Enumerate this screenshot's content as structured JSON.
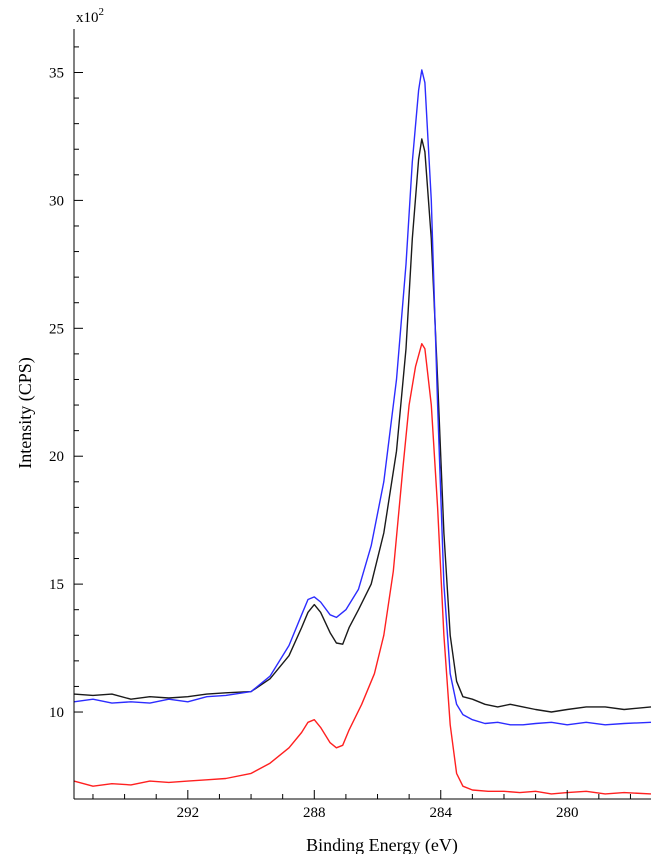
{
  "chart_data": {
    "type": "line",
    "multiplier": {
      "base": "x10",
      "exponent": "2"
    },
    "xlabel": "Binding Energy (eV)",
    "ylabel": "Intensity (CPS)",
    "x_reversed": true,
    "xlim": [
      295.6,
      277.35
    ],
    "ylim": [
      6.6,
      36.7
    ],
    "x_ticks": [
      292,
      288,
      284,
      280
    ],
    "x_minor_ticks": [
      295,
      294,
      293,
      291,
      290,
      289,
      287,
      286,
      285,
      283,
      282,
      281,
      279,
      278
    ],
    "y_ticks": [
      10,
      15,
      20,
      25,
      30,
      35
    ],
    "y_minor_ticks": [
      11,
      12,
      13,
      14,
      16,
      17,
      18,
      19,
      21,
      22,
      23,
      24,
      26,
      27,
      28,
      29,
      31,
      32,
      33,
      34,
      36
    ],
    "grid": false,
    "series": [
      {
        "color": "#1a1a1a",
        "points": [
          [
            295.6,
            10.7
          ],
          [
            295.0,
            10.65
          ],
          [
            294.4,
            10.7
          ],
          [
            293.8,
            10.5
          ],
          [
            293.2,
            10.6
          ],
          [
            292.6,
            10.55
          ],
          [
            292.0,
            10.6
          ],
          [
            291.4,
            10.7
          ],
          [
            290.8,
            10.75
          ],
          [
            290.0,
            10.8
          ],
          [
            289.4,
            11.3
          ],
          [
            288.8,
            12.2
          ],
          [
            288.4,
            13.3
          ],
          [
            288.2,
            13.9
          ],
          [
            288.0,
            14.2
          ],
          [
            287.8,
            13.9
          ],
          [
            287.5,
            13.1
          ],
          [
            287.3,
            12.7
          ],
          [
            287.1,
            12.65
          ],
          [
            286.9,
            13.3
          ],
          [
            286.6,
            14.0
          ],
          [
            286.2,
            15.0
          ],
          [
            285.8,
            17.0
          ],
          [
            285.4,
            20.2
          ],
          [
            285.1,
            24.2
          ],
          [
            284.9,
            28.5
          ],
          [
            284.7,
            31.6
          ],
          [
            284.6,
            32.4
          ],
          [
            284.5,
            31.9
          ],
          [
            284.3,
            28.5
          ],
          [
            284.1,
            23.0
          ],
          [
            283.9,
            17.0
          ],
          [
            283.7,
            13.0
          ],
          [
            283.5,
            11.2
          ],
          [
            283.3,
            10.6
          ],
          [
            283.0,
            10.5
          ],
          [
            282.6,
            10.3
          ],
          [
            282.2,
            10.2
          ],
          [
            281.8,
            10.3
          ],
          [
            281.4,
            10.2
          ],
          [
            281.0,
            10.1
          ],
          [
            280.5,
            10.0
          ],
          [
            280.0,
            10.1
          ],
          [
            279.4,
            10.2
          ],
          [
            278.8,
            10.2
          ],
          [
            278.2,
            10.1
          ],
          [
            277.35,
            10.2
          ]
        ]
      },
      {
        "color": "#2c2cff",
        "points": [
          [
            295.6,
            10.4
          ],
          [
            295.0,
            10.5
          ],
          [
            294.4,
            10.35
          ],
          [
            293.8,
            10.4
          ],
          [
            293.2,
            10.35
          ],
          [
            292.6,
            10.5
          ],
          [
            292.0,
            10.4
          ],
          [
            291.4,
            10.6
          ],
          [
            290.8,
            10.65
          ],
          [
            290.0,
            10.8
          ],
          [
            289.4,
            11.4
          ],
          [
            288.8,
            12.6
          ],
          [
            288.4,
            13.8
          ],
          [
            288.2,
            14.4
          ],
          [
            288.0,
            14.5
          ],
          [
            287.8,
            14.3
          ],
          [
            287.5,
            13.8
          ],
          [
            287.3,
            13.7
          ],
          [
            287.0,
            14.0
          ],
          [
            286.6,
            14.8
          ],
          [
            286.2,
            16.5
          ],
          [
            285.8,
            19.0
          ],
          [
            285.4,
            23.0
          ],
          [
            285.1,
            27.5
          ],
          [
            284.9,
            31.5
          ],
          [
            284.7,
            34.3
          ],
          [
            284.6,
            35.1
          ],
          [
            284.5,
            34.6
          ],
          [
            284.3,
            30.0
          ],
          [
            284.1,
            22.0
          ],
          [
            283.9,
            15.0
          ],
          [
            283.7,
            11.5
          ],
          [
            283.5,
            10.3
          ],
          [
            283.3,
            9.9
          ],
          [
            283.0,
            9.7
          ],
          [
            282.6,
            9.55
          ],
          [
            282.2,
            9.6
          ],
          [
            281.8,
            9.5
          ],
          [
            281.4,
            9.5
          ],
          [
            281.0,
            9.55
          ],
          [
            280.5,
            9.6
          ],
          [
            280.0,
            9.5
          ],
          [
            279.4,
            9.6
          ],
          [
            278.8,
            9.5
          ],
          [
            278.2,
            9.55
          ],
          [
            277.35,
            9.6
          ]
        ]
      },
      {
        "color": "#ff2020",
        "points": [
          [
            295.6,
            7.3
          ],
          [
            295.0,
            7.1
          ],
          [
            294.4,
            7.2
          ],
          [
            293.8,
            7.15
          ],
          [
            293.2,
            7.3
          ],
          [
            292.6,
            7.25
          ],
          [
            292.0,
            7.3
          ],
          [
            291.4,
            7.35
          ],
          [
            290.8,
            7.4
          ],
          [
            290.0,
            7.6
          ],
          [
            289.4,
            8.0
          ],
          [
            288.8,
            8.6
          ],
          [
            288.4,
            9.2
          ],
          [
            288.2,
            9.6
          ],
          [
            288.0,
            9.7
          ],
          [
            287.8,
            9.4
          ],
          [
            287.5,
            8.8
          ],
          [
            287.3,
            8.6
          ],
          [
            287.1,
            8.7
          ],
          [
            286.9,
            9.3
          ],
          [
            286.5,
            10.3
          ],
          [
            286.1,
            11.5
          ],
          [
            285.8,
            13.0
          ],
          [
            285.5,
            15.5
          ],
          [
            285.2,
            19.5
          ],
          [
            285.0,
            22.0
          ],
          [
            284.8,
            23.5
          ],
          [
            284.6,
            24.4
          ],
          [
            284.5,
            24.2
          ],
          [
            284.3,
            22.0
          ],
          [
            284.1,
            18.0
          ],
          [
            283.9,
            13.0
          ],
          [
            283.7,
            9.5
          ],
          [
            283.5,
            7.6
          ],
          [
            283.3,
            7.1
          ],
          [
            283.0,
            6.95
          ],
          [
            282.5,
            6.9
          ],
          [
            282.0,
            6.9
          ],
          [
            281.5,
            6.85
          ],
          [
            281.0,
            6.9
          ],
          [
            280.5,
            6.8
          ],
          [
            280.0,
            6.85
          ],
          [
            279.4,
            6.9
          ],
          [
            278.8,
            6.8
          ],
          [
            278.2,
            6.85
          ],
          [
            277.35,
            6.8
          ]
        ]
      }
    ]
  }
}
